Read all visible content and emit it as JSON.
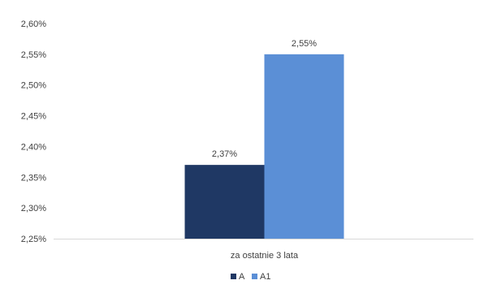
{
  "chart_data": {
    "type": "bar",
    "categories": [
      "za ostatnie 3 lata"
    ],
    "series": [
      {
        "name": "A",
        "values": [
          2.37
        ],
        "label": "2,37%",
        "color": "#1f3864"
      },
      {
        "name": "A1",
        "values": [
          2.55
        ],
        "label": "2,55%",
        "color": "#5b8fd6"
      }
    ],
    "ylim": [
      2.25,
      2.6
    ],
    "yticks": [
      {
        "value": 2.25,
        "label": "2,25%"
      },
      {
        "value": 2.3,
        "label": "2,30%"
      },
      {
        "value": 2.35,
        "label": "2,35%"
      },
      {
        "value": 2.4,
        "label": "2,40%"
      },
      {
        "value": 2.45,
        "label": "2,45%"
      },
      {
        "value": 2.5,
        "label": "2,50%"
      },
      {
        "value": 2.55,
        "label": "2,55%"
      },
      {
        "value": 2.6,
        "label": "2,60%"
      }
    ],
    "grid": false,
    "legend_position": "bottom"
  }
}
